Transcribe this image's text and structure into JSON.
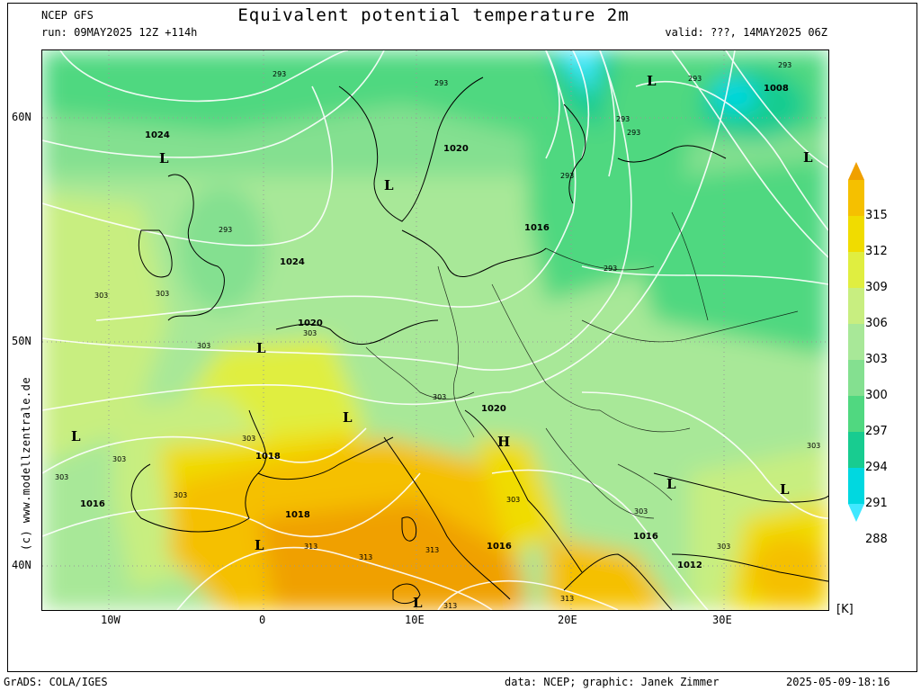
{
  "header": {
    "model": "NCEP GFS",
    "run": "run: 09MAY2025 12Z +114h",
    "title": "Equivalent potential temperature 2m",
    "valid": "valid: ???, 14MAY2025 06Z"
  },
  "footer": {
    "grads": "GrADS: COLA/IGES",
    "credit": "data: NCEP; graphic: Janek Zimmer",
    "timestamp": "2025-05-09-18:16"
  },
  "watermark": "(c)  www.modellzentrale.de",
  "axes": {
    "lat_labels": [
      "60N",
      "50N",
      "40N"
    ],
    "lon_labels": [
      "10W",
      "0",
      "10E",
      "20E",
      "30E"
    ]
  },
  "colorbar": {
    "unit": "[K]",
    "levels": [
      "315",
      "312",
      "309",
      "306",
      "303",
      "300",
      "297",
      "294",
      "291",
      "288"
    ],
    "colors": [
      "#f0a000",
      "#f5c000",
      "#f0dc00",
      "#e0ee40",
      "#c8ee80",
      "#a8e898",
      "#84e090",
      "#50d880",
      "#18cc90",
      "#00d8e0",
      "#40e8ff"
    ]
  },
  "map": {
    "pressure_labels": [
      "1024",
      "1024",
      "1020",
      "1020",
      "1016",
      "1008",
      "1016",
      "1018",
      "1018",
      "1016",
      "1016",
      "1016",
      "1012",
      "1020"
    ],
    "theta_labels": [
      "293",
      "293",
      "293",
      "293",
      "293",
      "293",
      "293",
      "293",
      "293",
      "303",
      "303",
      "303",
      "303",
      "303",
      "303",
      "303",
      "303",
      "303",
      "303",
      "303",
      "303",
      "303",
      "313",
      "313",
      "313",
      "313",
      "313",
      "303"
    ],
    "low_high_labels": [
      "L",
      "L",
      "L",
      "L",
      "L",
      "L",
      "L",
      "L",
      "L",
      "L",
      "L",
      "H",
      "L"
    ]
  }
}
